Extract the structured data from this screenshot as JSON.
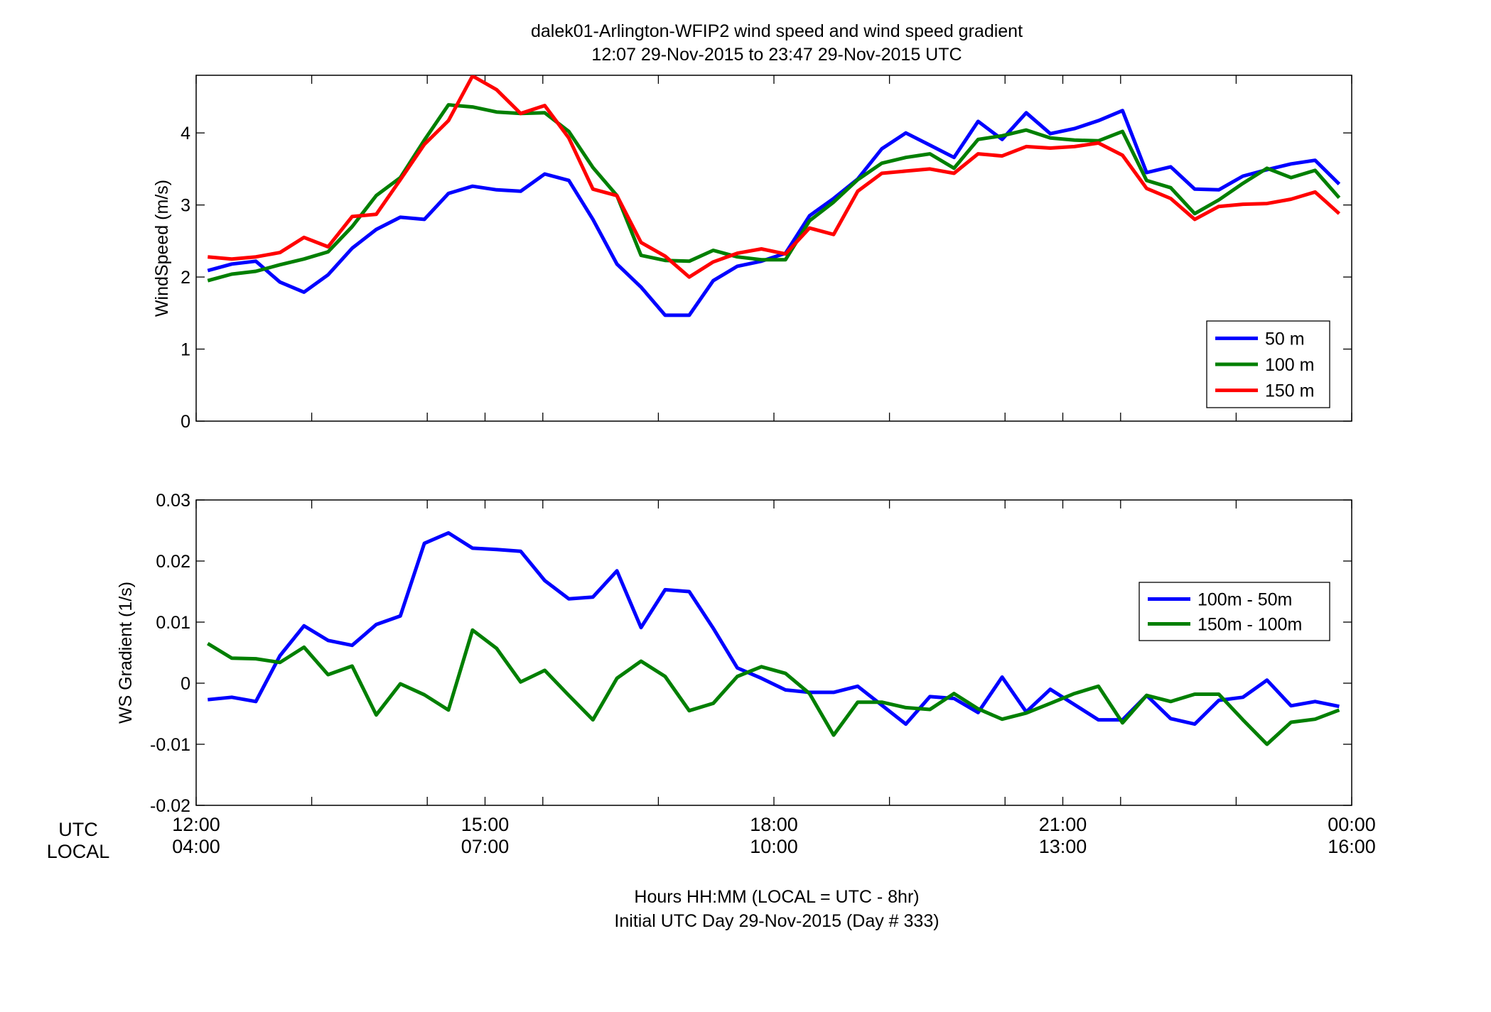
{
  "figure": {
    "title_line1": "dalek01-Arlington-WFIP2  wind speed and wind speed gradient",
    "title_line2": "12:07 29-Nov-2015 to 23:47 29-Nov-2015  UTC",
    "xlabel_line1": "Hours HH:MM  (LOCAL = UTC - 8hr)",
    "xlabel_line2": "Initial UTC Day 29-Nov-2015 (Day # 333)",
    "row_label_utc": "UTC",
    "row_label_local": "LOCAL"
  },
  "chart_data": [
    {
      "type": "line",
      "ylabel": "WindSpeed (m/s)",
      "ylim": [
        0,
        4.8
      ],
      "yticks": [
        0,
        1,
        2,
        3,
        4
      ],
      "ytick_labels": [
        "0",
        "1",
        "2",
        "3",
        "4"
      ],
      "xlim": [
        12,
        24
      ],
      "xticks": [
        12,
        13.2,
        14.4,
        15,
        15.6,
        16.8,
        18,
        19.2,
        20.4,
        21,
        21.6,
        22.8,
        24
      ],
      "x_labeled_ticks_utc": [
        "12:00",
        "15:00",
        "18:00",
        "21:00",
        "00:00"
      ],
      "x_labeled_ticks_local": [
        "04:00",
        "07:00",
        "10:00",
        "13:00",
        "16:00"
      ],
      "x": [
        12.12,
        12.37,
        12.62,
        12.87,
        13.12,
        13.37,
        13.62,
        13.87,
        14.12,
        14.37,
        14.62,
        14.87,
        15.12,
        15.37,
        15.62,
        15.87,
        16.12,
        16.37,
        16.62,
        16.87,
        17.12,
        17.37,
        17.62,
        17.87,
        18.12,
        18.37,
        18.62,
        18.87,
        19.12,
        19.37,
        19.62,
        19.87,
        20.12,
        20.37,
        20.62,
        20.87,
        21.12,
        21.37,
        21.62,
        21.87,
        22.12,
        22.37,
        22.62,
        22.87,
        23.12,
        23.37,
        23.62,
        23.87
      ],
      "legend_position": "lower-right",
      "series": [
        {
          "name": "50 m",
          "color": "#0000ff",
          "values": [
            2.09,
            2.18,
            2.22,
            1.93,
            1.79,
            2.03,
            2.4,
            2.66,
            2.83,
            2.8,
            3.16,
            3.26,
            3.21,
            3.19,
            3.43,
            3.34,
            2.8,
            2.18,
            1.86,
            1.47,
            1.47,
            1.95,
            2.15,
            2.22,
            2.33,
            2.85,
            3.09,
            3.36,
            3.78,
            4.0,
            3.83,
            3.66,
            4.16,
            3.91,
            4.28,
            3.99,
            4.06,
            4.17,
            4.31,
            3.45,
            3.53,
            3.22,
            3.21,
            3.4,
            3.49,
            3.57,
            3.62,
            3.29
          ]
        },
        {
          "name": "100 m",
          "color": "#007f00",
          "values": [
            1.95,
            2.04,
            2.08,
            2.17,
            2.25,
            2.35,
            2.7,
            3.13,
            3.38,
            3.9,
            4.39,
            4.36,
            4.29,
            4.27,
            4.28,
            4.02,
            3.52,
            3.13,
            2.3,
            2.23,
            2.22,
            2.37,
            2.28,
            2.24,
            2.24,
            2.78,
            3.04,
            3.35,
            3.58,
            3.66,
            3.71,
            3.51,
            3.91,
            3.96,
            4.04,
            3.93,
            3.9,
            3.89,
            4.02,
            3.34,
            3.24,
            2.88,
            3.07,
            3.3,
            3.51,
            3.38,
            3.48,
            3.1
          ]
        },
        {
          "name": "150 m",
          "color": "#ff0000",
          "values": [
            2.28,
            2.25,
            2.28,
            2.34,
            2.55,
            2.42,
            2.84,
            2.87,
            3.35,
            3.84,
            4.17,
            4.79,
            4.6,
            4.27,
            4.38,
            3.93,
            3.22,
            3.13,
            2.48,
            2.29,
            2.0,
            2.21,
            2.33,
            2.39,
            2.32,
            2.68,
            2.59,
            3.19,
            3.44,
            3.47,
            3.5,
            3.44,
            3.71,
            3.68,
            3.81,
            3.79,
            3.81,
            3.86,
            3.69,
            3.23,
            3.09,
            2.8,
            2.98,
            3.01,
            3.02,
            3.08,
            3.18,
            2.88
          ]
        }
      ]
    },
    {
      "type": "line",
      "ylabel": "WS Gradient (1/s)",
      "ylim": [
        -0.02,
        0.03
      ],
      "yticks": [
        -0.02,
        -0.01,
        0,
        0.01,
        0.02,
        0.03
      ],
      "ytick_labels": [
        "-0.02",
        "-0.01",
        "0",
        "0.01",
        "0.02",
        "0.03"
      ],
      "xlim": [
        12,
        24
      ],
      "xticks": [
        12,
        13.2,
        14.4,
        15,
        15.6,
        16.8,
        18,
        19.2,
        20.4,
        21,
        21.6,
        22.8,
        24
      ],
      "x_labeled_ticks_utc": [
        "12:00",
        "15:00",
        "18:00",
        "21:00",
        "00:00"
      ],
      "x_labeled_ticks_local": [
        "04:00",
        "07:00",
        "10:00",
        "13:00",
        "16:00"
      ],
      "x": [
        12.12,
        12.37,
        12.62,
        12.87,
        13.12,
        13.37,
        13.62,
        13.87,
        14.12,
        14.37,
        14.62,
        14.87,
        15.12,
        15.37,
        15.62,
        15.87,
        16.12,
        16.37,
        16.62,
        16.87,
        17.12,
        17.37,
        17.62,
        17.87,
        18.12,
        18.37,
        18.62,
        18.87,
        19.12,
        19.37,
        19.62,
        19.87,
        20.12,
        20.37,
        20.62,
        20.87,
        21.12,
        21.37,
        21.62,
        21.87,
        22.12,
        22.37,
        22.62,
        22.87,
        23.12,
        23.37,
        23.62,
        23.87
      ],
      "legend_position": "right",
      "series": [
        {
          "name": "100m - 50m",
          "color": "#0000ff",
          "values": [
            -0.0027,
            -0.0023,
            -0.003,
            0.0045,
            0.0094,
            0.007,
            0.0062,
            0.0096,
            0.011,
            0.0229,
            0.0246,
            0.0221,
            0.0219,
            0.0216,
            0.0168,
            0.0138,
            0.0141,
            0.0184,
            0.0091,
            0.0153,
            0.015,
            0.009,
            0.0025,
            0.0008,
            -0.0011,
            -0.0015,
            -0.0015,
            -0.0005,
            -0.0036,
            -0.0067,
            -0.0022,
            -0.0025,
            -0.0048,
            0.001,
            -0.0047,
            -0.001,
            -0.0035,
            -0.006,
            -0.006,
            -0.002,
            -0.0058,
            -0.0067,
            -0.0028,
            -0.0023,
            0.0005,
            -0.0037,
            -0.003,
            -0.0038
          ]
        },
        {
          "name": "150m - 100m",
          "color": "#007f00",
          "values": [
            0.0065,
            0.0041,
            0.004,
            0.0034,
            0.0059,
            0.0014,
            0.0028,
            -0.0052,
            -0.0001,
            -0.0019,
            -0.0044,
            0.0087,
            0.0057,
            0.0002,
            0.0021,
            -0.002,
            -0.006,
            0.0008,
            0.0036,
            0.0011,
            -0.0045,
            -0.0033,
            0.0011,
            0.0027,
            0.0016,
            -0.0017,
            -0.0085,
            -0.0031,
            -0.0031,
            -0.004,
            -0.0043,
            -0.0017,
            -0.0042,
            -0.0059,
            -0.0049,
            -0.0033,
            -0.0017,
            -0.0005,
            -0.0065,
            -0.002,
            -0.003,
            -0.0018,
            -0.0018,
            -0.006,
            -0.01,
            -0.0064,
            -0.0059,
            -0.0044
          ]
        }
      ]
    }
  ]
}
